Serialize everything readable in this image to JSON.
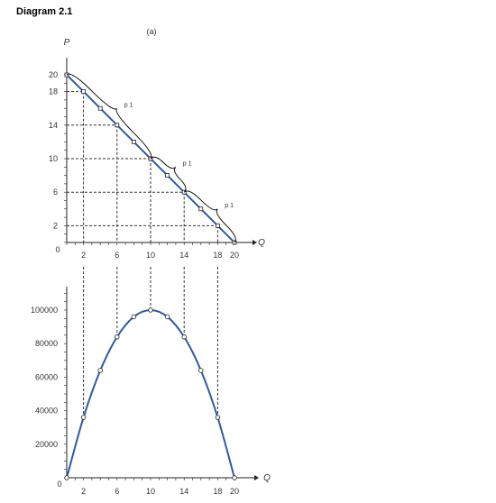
{
  "header": {
    "title": "Diagram 2.1",
    "panel_label": "(a)"
  },
  "colors": {
    "line": "#2e59a8",
    "axis": "#222222",
    "point_fill": "#ffffff",
    "dash": "#333333"
  },
  "chart_data": [
    {
      "type": "line",
      "title": "",
      "ylabel": "P",
      "xlabel": "Q",
      "x_origin_label": "0",
      "x": [
        0,
        2,
        4,
        6,
        8,
        10,
        12,
        14,
        16,
        18,
        20
      ],
      "y": [
        20,
        18,
        16,
        14,
        12,
        10,
        8,
        6,
        4,
        2,
        0
      ],
      "x_ticks": [
        2,
        6,
        10,
        14,
        18,
        20
      ],
      "y_ticks": [
        20,
        18,
        14,
        10,
        6,
        2
      ],
      "xlim": [
        0,
        20
      ],
      "ylim": [
        0,
        20
      ],
      "dashed_guides": [
        [
          2,
          18
        ],
        [
          6,
          14
        ],
        [
          10,
          10
        ],
        [
          14,
          6
        ],
        [
          18,
          2
        ]
      ],
      "brace_labels": [
        {
          "text": "p 1",
          "from_x": 0,
          "to_x": 10
        },
        {
          "text": "p 1",
          "from_x": 10,
          "to_x": 14
        },
        {
          "text": "p 1",
          "from_x": 14,
          "to_x": 20
        }
      ]
    },
    {
      "type": "line",
      "title": "",
      "ylabel": "",
      "xlabel": "Q",
      "y_origin_label": "0",
      "x": [
        0,
        2,
        4,
        6,
        8,
        10,
        12,
        14,
        16,
        18,
        20
      ],
      "y": [
        0,
        36000,
        64000,
        84000,
        96000,
        100000,
        96000,
        84000,
        64000,
        36000,
        0
      ],
      "x_ticks": [
        2,
        6,
        10,
        14,
        18,
        20
      ],
      "y_ticks": [
        100000,
        80000,
        60000,
        40000,
        20000
      ],
      "xlim": [
        0,
        20
      ],
      "ylim": [
        0,
        110000
      ],
      "grid": false
    }
  ]
}
